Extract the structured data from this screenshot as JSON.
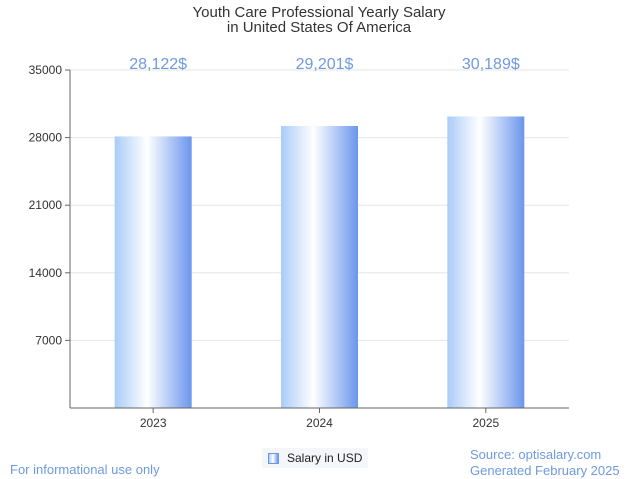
{
  "chart_data": {
    "type": "bar",
    "title_lines": [
      "Youth Care Professional Yearly Salary",
      "in United States Of America"
    ],
    "categories": [
      "2023",
      "2024",
      "2025"
    ],
    "series": [
      {
        "name": "Salary in USD",
        "values": [
          28122,
          29201,
          30189
        ]
      }
    ],
    "data_labels": [
      "28,122$",
      "29,201$",
      "30,189$"
    ],
    "y_ticks": [
      7000,
      14000,
      21000,
      28000,
      35000
    ],
    "y_tick_labels": [
      "7000",
      "14000",
      "21000",
      "28000",
      "35000"
    ],
    "ylim": [
      0,
      35000
    ],
    "xlabel": "",
    "ylabel": "",
    "grid": true,
    "legend_position": "bottom-center",
    "colors": {
      "bar_left": "#a9ccf7",
      "bar_mid": "#ffffff",
      "bar_right": "#6a96ec",
      "label": "#6f99e0",
      "grid": "#e6e6e6",
      "axis": "#666666"
    }
  },
  "footer": {
    "note": "For informational use only",
    "source": "Source: optisalary.com",
    "generated": "Generated February 2025"
  }
}
